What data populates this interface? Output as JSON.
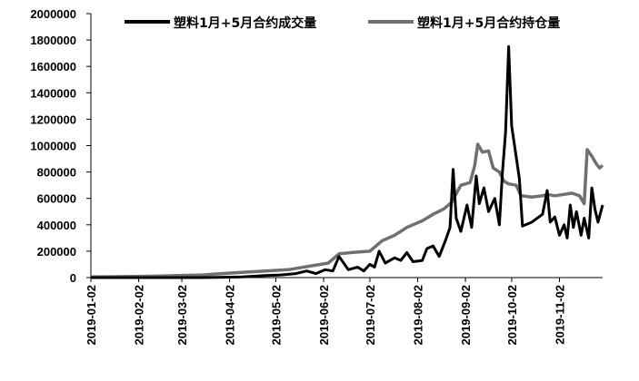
{
  "chart_data": {
    "type": "line",
    "title": "",
    "xlabel": "",
    "ylabel": "",
    "ylim": [
      0,
      2000000
    ],
    "y_ticks": [
      "0",
      "200000",
      "400000",
      "600000",
      "800000",
      "1000000",
      "1200000",
      "1400000",
      "1600000",
      "1800000",
      "2000000"
    ],
    "x_range": [
      "2019-01-02",
      "2019-11-30"
    ],
    "x_ticks": [
      "2019-01-02",
      "2019-02-02",
      "2019-03-02",
      "2019-04-02",
      "2019-05-02",
      "2019-06-02",
      "2019-07-02",
      "2019-08-02",
      "2019-09-02",
      "2019-10-02",
      "2019-11-02"
    ],
    "grid": false,
    "legend_position": "top",
    "series": [
      {
        "name": "塑料1月+5月合约成交量",
        "color": "#000000",
        "points": [
          [
            "2019-01-02",
            0
          ],
          [
            "2019-02-10",
            0
          ],
          [
            "2019-03-15",
            0
          ],
          [
            "2019-04-10",
            5000
          ],
          [
            "2019-04-25",
            15000
          ],
          [
            "2019-05-05",
            20000
          ],
          [
            "2019-05-15",
            30000
          ],
          [
            "2019-05-22",
            50000
          ],
          [
            "2019-05-28",
            30000
          ],
          [
            "2019-06-03",
            60000
          ],
          [
            "2019-06-08",
            50000
          ],
          [
            "2019-06-12",
            160000
          ],
          [
            "2019-06-18",
            60000
          ],
          [
            "2019-06-24",
            80000
          ],
          [
            "2019-06-28",
            50000
          ],
          [
            "2019-07-02",
            100000
          ],
          [
            "2019-07-05",
            80000
          ],
          [
            "2019-07-08",
            200000
          ],
          [
            "2019-07-12",
            110000
          ],
          [
            "2019-07-18",
            150000
          ],
          [
            "2019-07-22",
            130000
          ],
          [
            "2019-07-26",
            190000
          ],
          [
            "2019-07-30",
            120000
          ],
          [
            "2019-08-05",
            130000
          ],
          [
            "2019-08-08",
            220000
          ],
          [
            "2019-08-12",
            240000
          ],
          [
            "2019-08-16",
            160000
          ],
          [
            "2019-08-20",
            280000
          ],
          [
            "2019-08-23",
            380000
          ],
          [
            "2019-08-25",
            820000
          ],
          [
            "2019-08-27",
            450000
          ],
          [
            "2019-08-30",
            350000
          ],
          [
            "2019-09-03",
            550000
          ],
          [
            "2019-09-06",
            380000
          ],
          [
            "2019-09-09",
            770000
          ],
          [
            "2019-09-11",
            560000
          ],
          [
            "2019-09-14",
            680000
          ],
          [
            "2019-09-17",
            500000
          ],
          [
            "2019-09-21",
            600000
          ],
          [
            "2019-09-24",
            400000
          ],
          [
            "2019-09-26",
            800000
          ],
          [
            "2019-09-28",
            1100000
          ],
          [
            "2019-09-30",
            1750000
          ],
          [
            "2019-10-02",
            1150000
          ],
          [
            "2019-10-07",
            750000
          ],
          [
            "2019-10-09",
            390000
          ],
          [
            "2019-10-15",
            420000
          ],
          [
            "2019-10-22",
            480000
          ],
          [
            "2019-10-25",
            660000
          ],
          [
            "2019-10-27",
            420000
          ],
          [
            "2019-10-30",
            460000
          ],
          [
            "2019-11-02",
            320000
          ],
          [
            "2019-11-05",
            400000
          ],
          [
            "2019-11-07",
            300000
          ],
          [
            "2019-11-09",
            550000
          ],
          [
            "2019-11-11",
            380000
          ],
          [
            "2019-11-13",
            500000
          ],
          [
            "2019-11-16",
            320000
          ],
          [
            "2019-11-18",
            450000
          ],
          [
            "2019-11-21",
            300000
          ],
          [
            "2019-11-23",
            680000
          ],
          [
            "2019-11-25",
            520000
          ],
          [
            "2019-11-27",
            420000
          ],
          [
            "2019-11-30",
            550000
          ]
        ]
      },
      {
        "name": "塑料1月+5月合约持仓量",
        "color": "#707070",
        "points": [
          [
            "2019-01-02",
            5000
          ],
          [
            "2019-02-10",
            10000
          ],
          [
            "2019-03-15",
            20000
          ],
          [
            "2019-04-10",
            40000
          ],
          [
            "2019-05-10",
            60000
          ],
          [
            "2019-06-05",
            110000
          ],
          [
            "2019-06-12",
            180000
          ],
          [
            "2019-06-20",
            190000
          ],
          [
            "2019-07-02",
            200000
          ],
          [
            "2019-07-10",
            280000
          ],
          [
            "2019-07-18",
            320000
          ],
          [
            "2019-07-26",
            380000
          ],
          [
            "2019-08-05",
            430000
          ],
          [
            "2019-08-12",
            480000
          ],
          [
            "2019-08-19",
            520000
          ],
          [
            "2019-08-24",
            570000
          ],
          [
            "2019-08-30",
            700000
          ],
          [
            "2019-09-05",
            720000
          ],
          [
            "2019-09-08",
            850000
          ],
          [
            "2019-09-10",
            1010000
          ],
          [
            "2019-09-13",
            950000
          ],
          [
            "2019-09-17",
            960000
          ],
          [
            "2019-09-20",
            830000
          ],
          [
            "2019-09-24",
            800000
          ],
          [
            "2019-09-27",
            730000
          ],
          [
            "2019-09-30",
            710000
          ],
          [
            "2019-10-05",
            700000
          ],
          [
            "2019-10-08",
            620000
          ],
          [
            "2019-10-15",
            610000
          ],
          [
            "2019-10-22",
            620000
          ],
          [
            "2019-10-25",
            630000
          ],
          [
            "2019-10-30",
            620000
          ],
          [
            "2019-11-05",
            630000
          ],
          [
            "2019-11-10",
            640000
          ],
          [
            "2019-11-15",
            620000
          ],
          [
            "2019-11-18",
            560000
          ],
          [
            "2019-11-20",
            970000
          ],
          [
            "2019-11-23",
            920000
          ],
          [
            "2019-11-26",
            860000
          ],
          [
            "2019-11-28",
            830000
          ],
          [
            "2019-11-30",
            850000
          ]
        ]
      }
    ]
  }
}
